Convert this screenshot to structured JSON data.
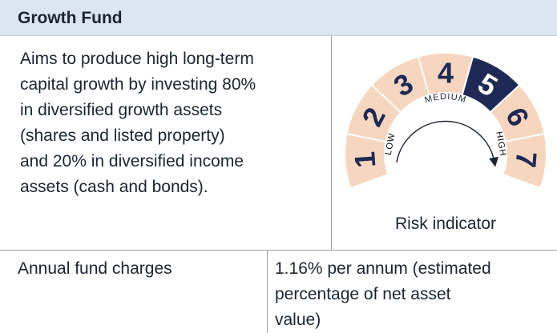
{
  "header": {
    "title": "Growth Fund"
  },
  "description": {
    "lines": [
      "Aims to produce high long-term",
      "capital growth by investing 80%",
      "in diversified growth assets",
      "(shares and listed property)",
      "and 20% in diversified income",
      "assets (cash and bonds)."
    ]
  },
  "risk": {
    "levels": [
      "1",
      "2",
      "3",
      "4",
      "5",
      "6",
      "7"
    ],
    "selected": "5",
    "low_label": "LOW",
    "medium_label": "MEDIUM",
    "high_label": "HIGH",
    "caption": "Risk indicator",
    "color": "#f7d6bf",
    "selected_color": "#1e2a55"
  },
  "charges": {
    "label": "Annual fund charges",
    "lines": [
      "1.16% per annum (estimated",
      "percentage of net asset",
      "value)"
    ]
  }
}
